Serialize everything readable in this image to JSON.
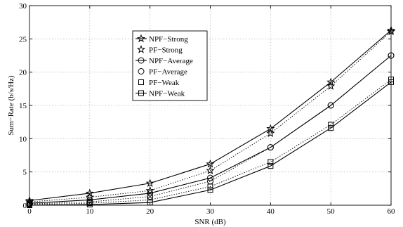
{
  "chart_data": {
    "type": "line",
    "xlabel": "SNR (dB)",
    "ylabel": "Sum−Rate (b/s/Hz)",
    "xlim": [
      0,
      60
    ],
    "ylim": [
      0,
      30
    ],
    "xticks": [
      0,
      10,
      20,
      30,
      40,
      50,
      60
    ],
    "yticks": [
      0,
      5,
      10,
      15,
      20,
      25,
      30
    ],
    "grid": true,
    "legend_position": "upper-left-center",
    "x": [
      0,
      10,
      20,
      30,
      40,
      50,
      60
    ],
    "series": [
      {
        "name": "NPF−Strong",
        "marker": "star",
        "line": "solid",
        "values": [
          0.7,
          1.8,
          3.3,
          6.2,
          11.5,
          18.5,
          26.3
        ]
      },
      {
        "name": "PF−Strong",
        "marker": "star",
        "line": "dotted",
        "values": [
          0.5,
          1.2,
          2.2,
          5.2,
          10.8,
          17.9,
          26.1
        ]
      },
      {
        "name": "NPF−Average",
        "marker": "circle",
        "line": "solid",
        "values": [
          0.3,
          0.8,
          1.8,
          4.1,
          8.7,
          15.0,
          22.5
        ]
      },
      {
        "name": "PF−Average",
        "marker": "circle",
        "line": "dotted",
        "values": [
          0.2,
          0.5,
          1.3,
          3.6,
          8.7,
          15.0,
          22.5
        ]
      },
      {
        "name": "PF−Weak",
        "marker": "square",
        "line": "dotted",
        "values": [
          0.1,
          0.3,
          0.8,
          2.8,
          6.5,
          12.1,
          18.9
        ]
      },
      {
        "name": "NPF−Weak",
        "marker": "square",
        "line": "solid",
        "values": [
          0.0,
          0.1,
          0.4,
          2.3,
          5.9,
          11.6,
          18.5
        ]
      }
    ]
  }
}
